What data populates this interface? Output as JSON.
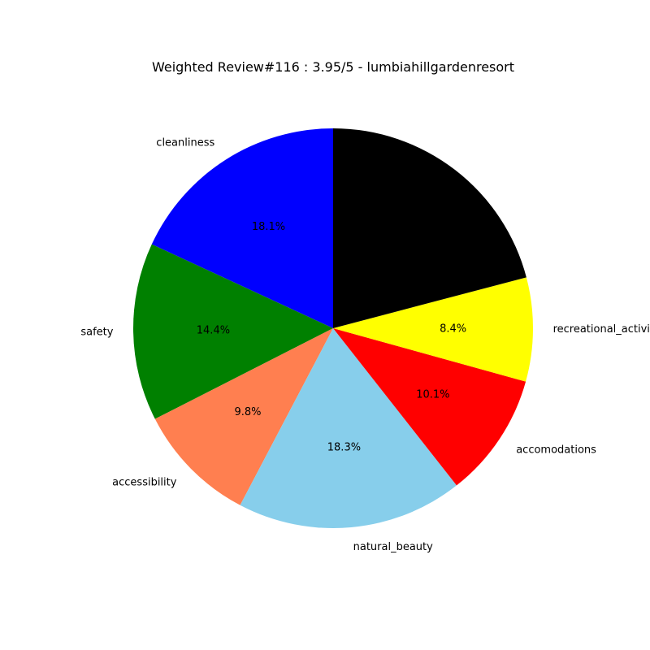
{
  "chart_data": {
    "type": "pie",
    "title": "Weighted Review#116 : 3.95/5 - lumbiahillgardenresort",
    "start_angle_deg": 90,
    "direction": "counterclockwise",
    "slices": [
      {
        "label": "cleanliness",
        "value": 18.1,
        "pct_text": "18.1%",
        "color": "#0000ff"
      },
      {
        "label": "safety",
        "value": 14.4,
        "pct_text": "14.4%",
        "color": "#008000"
      },
      {
        "label": "accessibility",
        "value": 9.8,
        "pct_text": "9.8%",
        "color": "#ff7f50"
      },
      {
        "label": "natural_beauty",
        "value": 18.3,
        "pct_text": "18.3%",
        "color": "#87ceeb"
      },
      {
        "label": "accomodations",
        "value": 10.1,
        "pct_text": "10.1%",
        "color": "#ff0000"
      },
      {
        "label": "recreational_activities",
        "value": 8.4,
        "pct_text": "8.4%",
        "color": "#ffff00"
      },
      {
        "label": "",
        "value": 20.9,
        "pct_text": "",
        "color": "#000000"
      }
    ]
  }
}
